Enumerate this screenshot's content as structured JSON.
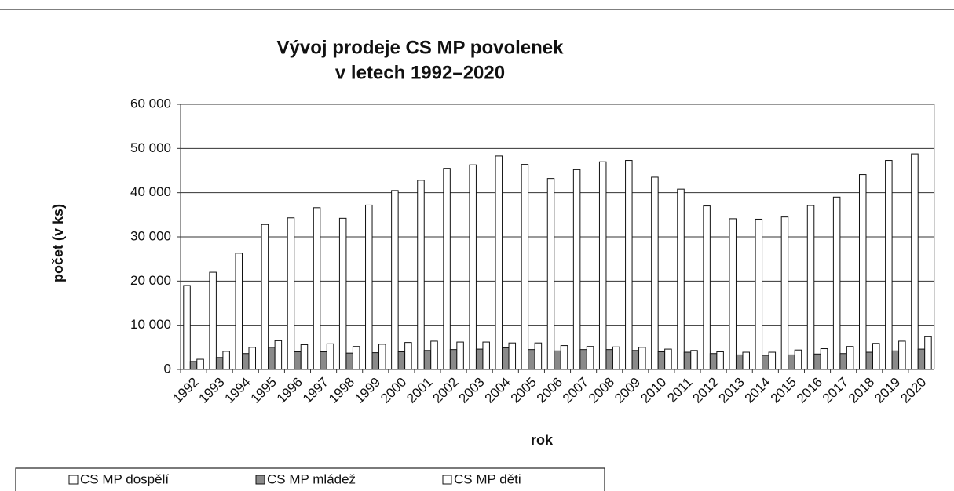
{
  "chart_data": {
    "type": "bar",
    "title": [
      "Vývoj prodeje CS MP povolenek",
      "v letech 1992–2020"
    ],
    "x_label": "rok",
    "y_label": "počet (v ks)",
    "categories": [
      "1992",
      "1993",
      "1994",
      "1995",
      "1996",
      "1997",
      "1998",
      "1999",
      "2000",
      "2001",
      "2002",
      "2003",
      "2004",
      "2005",
      "2006",
      "2007",
      "2008",
      "2009",
      "2010",
      "2011",
      "2012",
      "2013",
      "2014",
      "2015",
      "2016",
      "2017",
      "2018",
      "2019",
      "2020"
    ],
    "series": [
      {
        "name": "CS MP dospělí",
        "color": "#ffffff",
        "values": [
          19000,
          22000,
          26300,
          32800,
          34300,
          36600,
          34200,
          37200,
          40500,
          42800,
          45500,
          46300,
          48300,
          46400,
          43200,
          45200,
          47000,
          47300,
          43500,
          40800,
          37000,
          34100,
          34000,
          34500,
          37100,
          39000,
          44100,
          47300,
          48800
        ]
      },
      {
        "name": "CS MP mládež",
        "color": "#8a8a8a",
        "values": [
          1800,
          2700,
          3600,
          5000,
          4000,
          4000,
          3700,
          3800,
          4000,
          4300,
          4500,
          4600,
          4900,
          4500,
          4200,
          4500,
          4500,
          4300,
          4000,
          3900,
          3600,
          3300,
          3200,
          3300,
          3500,
          3600,
          3900,
          4200,
          4600
        ]
      },
      {
        "name": "CS MP děti",
        "color": "#ffffff",
        "values": [
          2300,
          4100,
          5000,
          6500,
          5600,
          5800,
          5200,
          5700,
          6100,
          6400,
          6200,
          6200,
          6000,
          6000,
          5400,
          5200,
          5100,
          5000,
          4600,
          4300,
          4000,
          3900,
          3900,
          4400,
          4700,
          5200,
          5900,
          6400,
          7400
        ]
      }
    ],
    "ylim": [
      0,
      60000
    ],
    "yticks": [
      0,
      {
        "value": 10000,
        "label": "10 000"
      },
      {
        "value": 20000,
        "label": "20 000"
      },
      {
        "value": 30000,
        "label": "30 000"
      },
      {
        "value": 40000,
        "label": "40 000"
      },
      {
        "value": 50000,
        "label": "50 000"
      },
      {
        "value": 60000,
        "label": "60 000"
      }
    ],
    "grid": true
  }
}
